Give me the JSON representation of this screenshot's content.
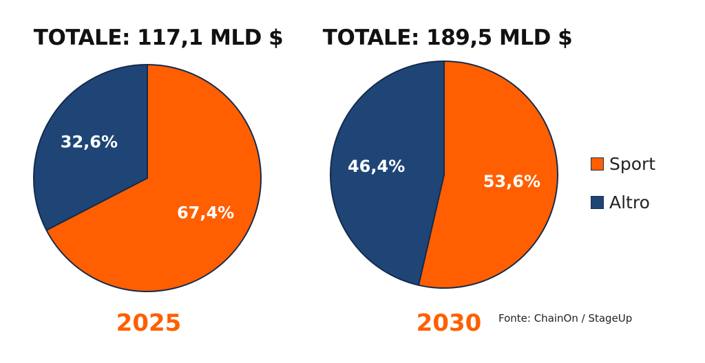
{
  "chart_data": [
    {
      "type": "pie",
      "title": "TOTALE: 117,1 MLD $",
      "xlabel": "2025",
      "categories": [
        "Sport",
        "Altro"
      ],
      "values": [
        67.4,
        32.6
      ],
      "labels": [
        "67,4%",
        "32,6%"
      ],
      "colors": [
        "#ff5f00",
        "#1f4576"
      ]
    },
    {
      "type": "pie",
      "title": "TOTALE: 189,5 MLD $",
      "xlabel": "2030",
      "categories": [
        "Sport",
        "Altro"
      ],
      "values": [
        53.6,
        46.4
      ],
      "labels": [
        "53,6%",
        "46,4%"
      ],
      "colors": [
        "#ff5f00",
        "#1f4576"
      ]
    }
  ],
  "legend": {
    "position": "right",
    "items": [
      {
        "label": "Sport",
        "color": "#ff5f00"
      },
      {
        "label": "Altro",
        "color": "#1f4576"
      }
    ]
  },
  "source": "Fonte: ChainOn / StageUp",
  "outline_color": "#142a4c"
}
